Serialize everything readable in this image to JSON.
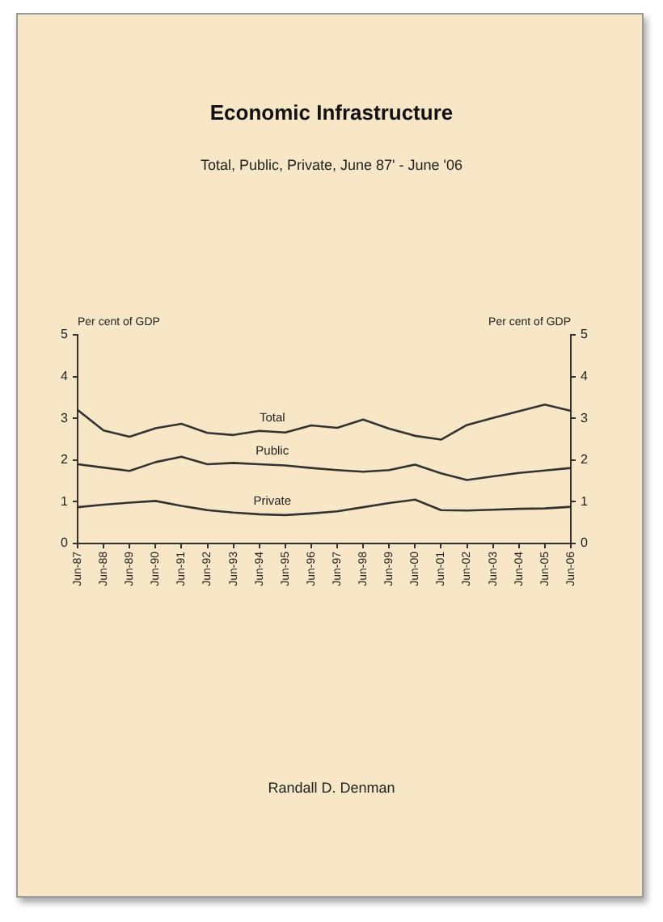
{
  "chart_data": {
    "type": "line",
    "title": "Economic Infrastructure",
    "subtitle": "Total, Public, Private, June 87' - June '06",
    "ylabel": "Per cent of GDP",
    "y2label": "Per cent of GDP",
    "annotations": [
      "Randall D. Denman"
    ],
    "categories": [
      "Jun-87",
      "Jun-88",
      "Jun-89",
      "Jun-90",
      "Jun-91",
      "Jun-92",
      "Jun-93",
      "Jun-94",
      "Jun-95",
      "Jun-96",
      "Jun-97",
      "Jun-98",
      "Jun-99",
      "Jun-00",
      "Jun-01",
      "Jun-02",
      "Jun-03",
      "Jun-04",
      "Jun-05",
      "Jun-06"
    ],
    "series": [
      {
        "name": "Total",
        "color": "#333333",
        "values": [
          3.2,
          2.71,
          2.56,
          2.76,
          2.87,
          2.65,
          2.6,
          2.7,
          2.66,
          2.83,
          2.77,
          2.97,
          2.75,
          2.58,
          2.49,
          2.84,
          3.01,
          3.17,
          3.33,
          3.18
        ]
      },
      {
        "name": "Public",
        "color": "#333333",
        "values": [
          1.9,
          1.82,
          1.74,
          1.95,
          2.08,
          1.9,
          1.93,
          1.9,
          1.87,
          1.81,
          1.76,
          1.72,
          1.76,
          1.89,
          1.68,
          1.52,
          1.61,
          1.69,
          1.75,
          1.81
        ]
      },
      {
        "name": "Private",
        "color": "#333333",
        "values": [
          0.87,
          0.93,
          0.98,
          1.02,
          0.9,
          0.8,
          0.74,
          0.7,
          0.68,
          0.72,
          0.77,
          0.87,
          0.97,
          1.05,
          0.8,
          0.79,
          0.81,
          0.83,
          0.84,
          0.88
        ]
      }
    ],
    "ylim": [
      0,
      5
    ],
    "yticks": [
      0,
      1,
      2,
      3,
      4,
      5
    ],
    "y2lim": [
      0,
      5
    ],
    "y2ticks": [
      0,
      1,
      2,
      3,
      4,
      5
    ],
    "marker": "none",
    "line_style": "solid"
  }
}
